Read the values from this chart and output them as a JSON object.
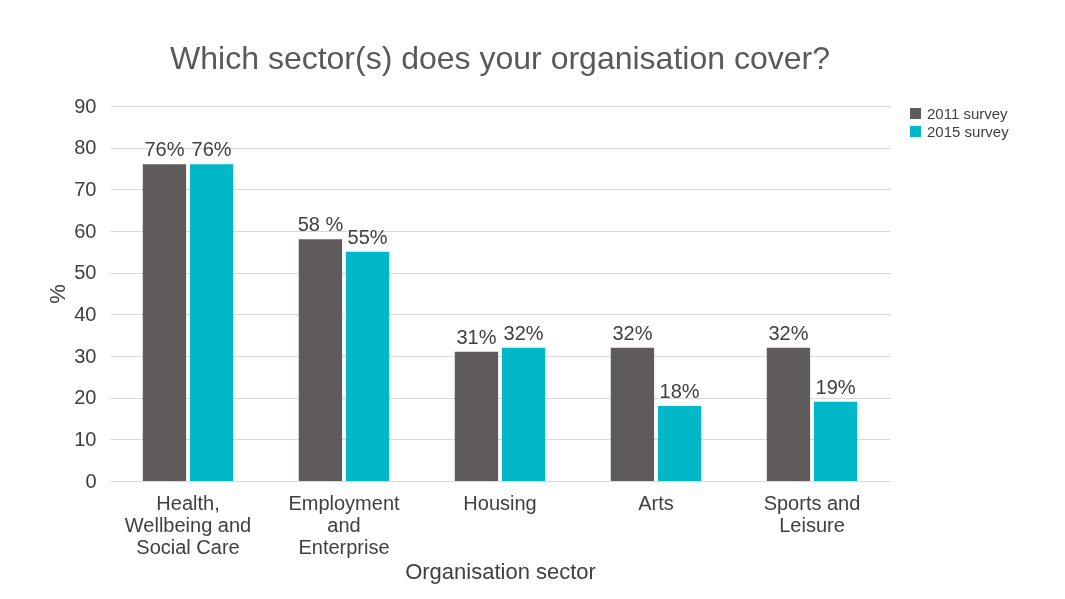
{
  "chart_data": {
    "type": "bar",
    "title": "Which sector(s) does your organisation cover?",
    "xlabel": "Organisation sector",
    "ylabel": "%",
    "categories": [
      "Health, Wellbeing and Social Care",
      "Employment and Enterprise",
      "Housing",
      "Arts",
      "Sports and Leisure"
    ],
    "series": [
      {
        "name": "2011 survey",
        "color": "#5f5b5b",
        "values": [
          76,
          58,
          31,
          32,
          32
        ],
        "value_labels": [
          "76%",
          "58 %",
          "31%",
          "32%",
          "32%"
        ]
      },
      {
        "name": "2015 survey",
        "color": "#00b8c8",
        "values": [
          76,
          55,
          32,
          18,
          19
        ],
        "value_labels": [
          "76%",
          "55%",
          "32%",
          "18%",
          "19%"
        ]
      }
    ],
    "ylim": [
      0,
      90
    ],
    "yticks": [
      0,
      10,
      20,
      30,
      40,
      50,
      60,
      70,
      80,
      90
    ],
    "grid": "y",
    "legend": "right"
  }
}
